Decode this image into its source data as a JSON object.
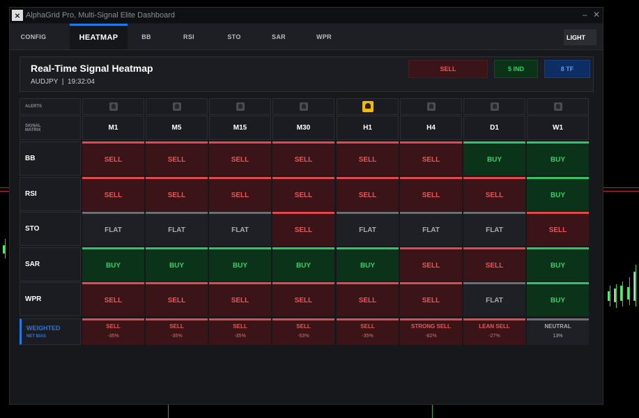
{
  "colors": {
    "accent": "#1e7ae8",
    "sell": "#e5484d",
    "buy": "#2fc665",
    "flat": "#6c6f76",
    "alert_active": "#f0b90b"
  },
  "window": {
    "title": "AlphaGrid Pro, Multi-Signal Elite Dashboard",
    "minimize": "–",
    "close": "✕"
  },
  "tabs": [
    {
      "label": "CONFIG",
      "active": false
    },
    {
      "label": "HEATMAP",
      "active": true
    },
    {
      "label": "BB",
      "active": false
    },
    {
      "label": "RSI",
      "active": false
    },
    {
      "label": "STO",
      "active": false
    },
    {
      "label": "SAR",
      "active": false
    },
    {
      "label": "WPR",
      "active": false
    }
  ],
  "theme_button": "LIGHT",
  "header": {
    "title": "Real-Time Signal Heatmap",
    "symbol": "AUDJPY",
    "separator": "|",
    "time": "19:32:04",
    "signal_badge": "SELL",
    "indicators_badge": "5 IND",
    "timeframes_badge": "8 TF"
  },
  "matrix": {
    "alerts_label": "ALERTS",
    "corner_label_1": "SIGNAL",
    "corner_label_2": "MATRIX",
    "timeframes": [
      "M1",
      "M5",
      "M15",
      "M30",
      "H1",
      "H4",
      "D1",
      "W1"
    ],
    "alerts": [
      {
        "icon": "bell-icon",
        "active": false
      },
      {
        "icon": "bell-icon",
        "active": false
      },
      {
        "icon": "bell-icon",
        "active": false
      },
      {
        "icon": "bell-icon",
        "active": false
      },
      {
        "icon": "bell-icon",
        "active": true
      },
      {
        "icon": "bell-icon",
        "active": false
      },
      {
        "icon": "bell-icon",
        "active": false
      },
      {
        "icon": "bell-icon",
        "active": false
      }
    ],
    "rows": [
      {
        "indicator": "BB",
        "signals": [
          "SELL",
          "SELL",
          "SELL",
          "SELL",
          "SELL",
          "SELL",
          "BUY",
          "BUY"
        ]
      },
      {
        "indicator": "RSI",
        "signals": [
          "SELL",
          "SELL",
          "SELL",
          "SELL",
          "SELL",
          "SELL",
          "SELL",
          "BUY"
        ]
      },
      {
        "indicator": "STO",
        "signals": [
          "FLAT",
          "FLAT",
          "FLAT",
          "SELL",
          "FLAT",
          "FLAT",
          "FLAT",
          "SELL"
        ]
      },
      {
        "indicator": "SAR",
        "signals": [
          "BUY",
          "BUY",
          "BUY",
          "BUY",
          "BUY",
          "SELL",
          "SELL",
          "BUY"
        ]
      },
      {
        "indicator": "WPR",
        "signals": [
          "SELL",
          "SELL",
          "SELL",
          "SELL",
          "SELL",
          "SELL",
          "FLAT",
          "BUY"
        ]
      }
    ],
    "weighted": {
      "label": "WEIGHTED",
      "sublabel": "NET BIAS",
      "cells": [
        {
          "label": "SELL",
          "pct": "-35%",
          "kind": "sell"
        },
        {
          "label": "SELL",
          "pct": "-35%",
          "kind": "sell"
        },
        {
          "label": "SELL",
          "pct": "-35%",
          "kind": "sell"
        },
        {
          "label": "SELL",
          "pct": "-53%",
          "kind": "sell"
        },
        {
          "label": "SELL",
          "pct": "-35%",
          "kind": "sell"
        },
        {
          "label": "STRONG SELL",
          "pct": "-82%",
          "kind": "sell"
        },
        {
          "label": "LEAN SELL",
          "pct": "-27%",
          "kind": "sell"
        },
        {
          "label": "NEUTRAL",
          "pct": "13%",
          "kind": "neutral"
        }
      ]
    }
  }
}
